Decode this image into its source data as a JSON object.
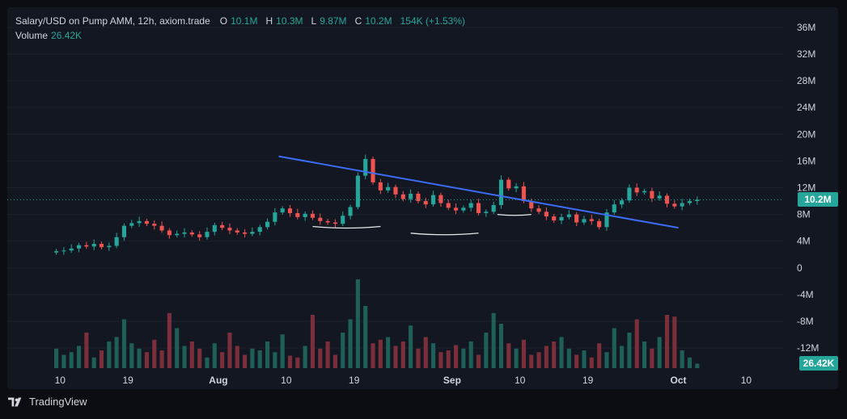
{
  "legend": {
    "title": "Salary/USD on Pump AMM, 12h, axiom.trade",
    "o_label": "O",
    "o_value": "10.1M",
    "h_label": "H",
    "h_value": "10.3M",
    "l_label": "L",
    "l_value": "9.87M",
    "c_label": "C",
    "c_value": "10.2M",
    "change": "154K (+1.53%)",
    "volume_label": "Volume",
    "volume_value": "26.42K"
  },
  "badges": {
    "price": "10.2M",
    "volume": "26.42K"
  },
  "footer": {
    "brand": "TradingView"
  },
  "colors": {
    "up": "#26a69a",
    "down": "#ef5350",
    "trendline": "#3d6cf5",
    "annotation": "#ffffff"
  },
  "chart_data": {
    "type": "candlestick",
    "y_axis_ticks": [
      "36M",
      "32M",
      "28M",
      "24M",
      "20M",
      "16M",
      "12M",
      "8M",
      "4M",
      "0",
      "-4M",
      "-8M",
      "-12M"
    ],
    "y_axis_values": [
      36,
      32,
      28,
      24,
      20,
      16,
      12,
      8,
      4,
      0,
      -4,
      -8,
      -12
    ],
    "ylim": [
      -15,
      39
    ],
    "x_axis_ticks": [
      {
        "label": "10",
        "x": 0.5,
        "bold": false
      },
      {
        "label": "19",
        "x": 9.5,
        "bold": false
      },
      {
        "label": "Aug",
        "x": 21.5,
        "bold": true
      },
      {
        "label": "10",
        "x": 30.5,
        "bold": false
      },
      {
        "label": "19",
        "x": 39.5,
        "bold": false
      },
      {
        "label": "Sep",
        "x": 52.5,
        "bold": true
      },
      {
        "label": "10",
        "x": 61.5,
        "bold": false
      },
      {
        "label": "19",
        "x": 70.5,
        "bold": false
      },
      {
        "label": "Oct",
        "x": 82.5,
        "bold": true
      },
      {
        "label": "10",
        "x": 91.5,
        "bold": false
      }
    ],
    "xlim": [
      -6.5,
      96.5
    ],
    "last_price": 10.2,
    "closes": [
      2.5,
      2.6,
      2.9,
      3.4,
      3.2,
      3.6,
      3.1,
      3.3,
      4.6,
      6.3,
      6.7,
      7.0,
      6.6,
      6.3,
      5.6,
      4.9,
      5.1,
      5.3,
      5.0,
      4.6,
      5.4,
      6.4,
      6.0,
      5.6,
      5.3,
      5.1,
      5.4,
      6.1,
      6.9,
      8.3,
      8.9,
      8.2,
      7.6,
      8.1,
      7.5,
      7.0,
      6.8,
      6.6,
      7.8,
      9.1,
      13.8,
      16.3,
      12.8,
      11.6,
      12.1,
      11.0,
      10.3,
      11.1,
      10.0,
      9.5,
      10.9,
      9.7,
      9.0,
      8.6,
      9.0,
      9.7,
      8.2,
      8.4,
      9.4,
      13.2,
      11.9,
      12.2,
      10.0,
      8.9,
      8.4,
      7.7,
      7.1,
      7.6,
      8.0,
      6.8,
      7.3,
      7.0,
      6.1,
      8.3,
      9.5,
      10.1,
      12.0,
      11.3,
      11.5,
      10.4,
      10.8,
      9.6,
      9.2,
      9.7,
      10.0,
      10.2
    ],
    "volume_ratio": [
      0.22,
      0.15,
      0.18,
      0.25,
      0.4,
      0.12,
      0.2,
      0.3,
      0.35,
      0.55,
      0.28,
      0.22,
      0.18,
      0.32,
      0.2,
      0.62,
      0.45,
      0.25,
      0.3,
      0.22,
      0.12,
      0.28,
      0.18,
      0.4,
      0.25,
      0.15,
      0.22,
      0.2,
      0.3,
      0.18,
      0.38,
      0.14,
      0.12,
      0.25,
      0.6,
      0.22,
      0.3,
      0.15,
      0.4,
      0.55,
      1.0,
      0.7,
      0.28,
      0.32,
      0.35,
      0.25,
      0.3,
      0.48,
      0.22,
      0.35,
      0.28,
      0.18,
      0.2,
      0.26,
      0.22,
      0.3,
      0.15,
      0.4,
      0.62,
      0.5,
      0.28,
      0.22,
      0.32,
      0.15,
      0.18,
      0.25,
      0.3,
      0.35,
      0.22,
      0.15,
      0.2,
      0.12,
      0.28,
      0.18,
      0.45,
      0.25,
      0.4,
      0.55,
      0.3,
      0.22,
      0.35,
      0.6,
      0.58,
      0.2,
      0.12,
      0.05
    ],
    "trendline": [
      {
        "x": 29.5,
        "y": 16.7
      },
      {
        "x": 82.5,
        "y": 6.0
      }
    ]
  }
}
